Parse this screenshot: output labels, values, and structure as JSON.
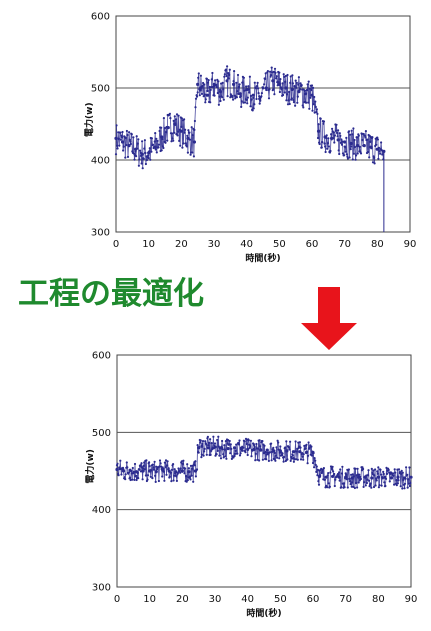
{
  "caption": "工程の最適化",
  "colors": {
    "series": "#2b2b8f",
    "caption": "#1f8a2e",
    "arrow": "#e8141b",
    "grid": "#555555"
  },
  "chart_data": [
    {
      "type": "line",
      "xlabel": "時間(秒)",
      "ylabel": "電力(w)",
      "xlim": [
        0,
        90
      ],
      "ylim": [
        300,
        600
      ],
      "xticks": [
        "0",
        "10",
        "20",
        "30",
        "40",
        "50",
        "60",
        "70",
        "80",
        "90"
      ],
      "yticks": [
        "600",
        "500",
        "400",
        "300"
      ],
      "grid_y": [
        400,
        500
      ],
      "x": [
        0,
        2,
        4,
        6,
        8,
        10,
        12,
        14,
        16,
        18,
        20,
        22,
        24,
        25,
        26,
        28,
        30,
        32,
        34,
        36,
        38,
        40,
        42,
        44,
        46,
        48,
        50,
        52,
        54,
        56,
        58,
        60,
        62,
        64,
        66,
        68,
        70,
        72,
        74,
        76,
        78,
        80,
        82
      ],
      "y": [
        430,
        425,
        420,
        415,
        408,
        410,
        418,
        432,
        445,
        450,
        440,
        430,
        425,
        505,
        500,
        490,
        505,
        495,
        510,
        505,
        492,
        498,
        490,
        485,
        500,
        510,
        505,
        500,
        498,
        495,
        492,
        490,
        440,
        432,
        430,
        428,
        425,
        423,
        420,
        420,
        418,
        415,
        412
      ]
    },
    {
      "type": "line",
      "xlabel": "時間(秒)",
      "ylabel": "電力(w)",
      "xlim": [
        0,
        90
      ],
      "ylim": [
        300,
        600
      ],
      "xticks": [
        "0",
        "10",
        "20",
        "30",
        "40",
        "50",
        "60",
        "70",
        "80",
        "90"
      ],
      "yticks": [
        "600",
        "500",
        "400",
        "300"
      ],
      "grid_y": [
        400,
        500
      ],
      "x": [
        0,
        2,
        4,
        6,
        8,
        10,
        12,
        14,
        16,
        18,
        20,
        22,
        24,
        25,
        26,
        28,
        30,
        32,
        34,
        36,
        38,
        40,
        42,
        44,
        46,
        48,
        50,
        52,
        54,
        56,
        58,
        60,
        62,
        64,
        66,
        68,
        70,
        72,
        74,
        76,
        78,
        80,
        82,
        84,
        86,
        88,
        90
      ],
      "y": [
        452,
        450,
        451,
        449,
        450,
        450,
        449,
        451,
        450,
        449,
        450,
        449,
        450,
        480,
        482,
        480,
        481,
        480,
        479,
        480,
        479,
        478,
        478,
        477,
        477,
        476,
        476,
        476,
        475,
        475,
        474,
        474,
        443,
        442,
        443,
        442,
        442,
        441,
        442,
        442,
        441,
        442,
        442,
        441,
        442,
        441,
        442
      ]
    }
  ]
}
